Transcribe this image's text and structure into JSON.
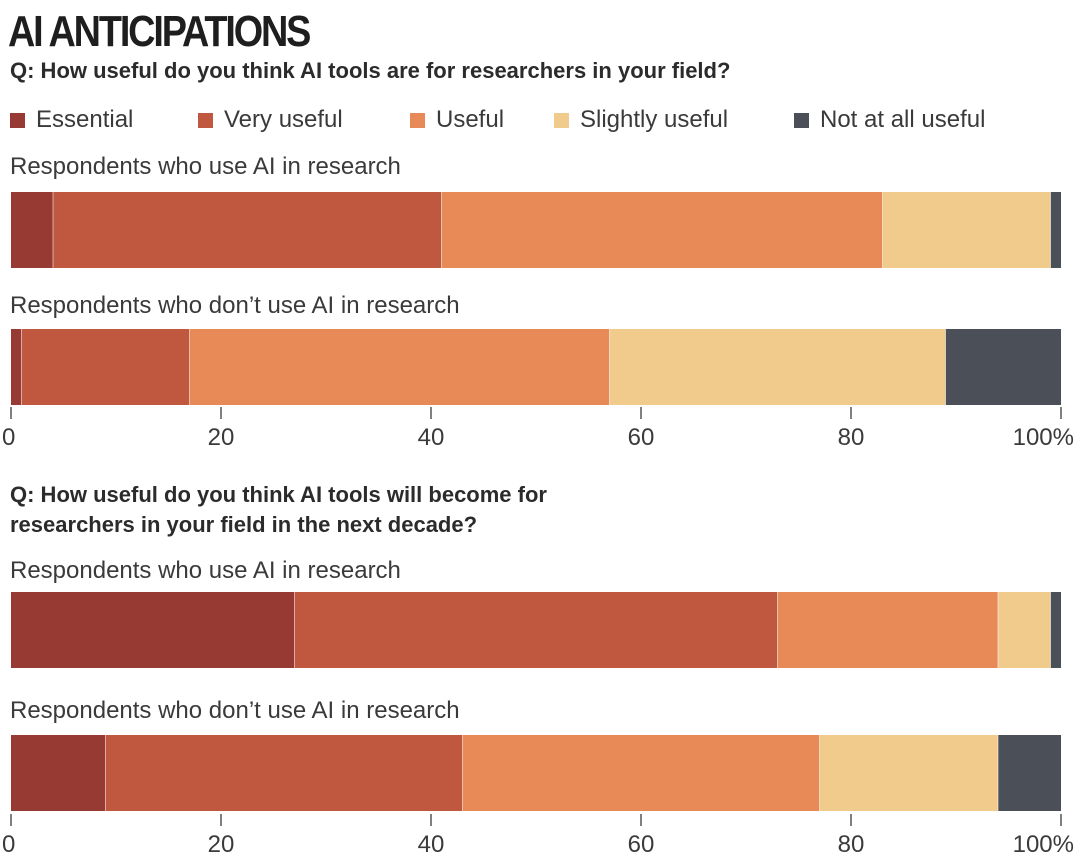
{
  "title": "AI ANTICIPATIONS",
  "colors": {
    "Essential": "#973a33",
    "Very useful": "#c0573f",
    "Useful": "#e88a58",
    "Slightly useful": "#f1cb8c",
    "Not at all useful": "#4a4f58"
  },
  "chart_data": [
    {
      "type": "bar",
      "orientation": "horizontal-stacked",
      "title": "Q: How useful do you think AI tools are for researchers in your field?",
      "categories": [
        "Respondents who use AI in research",
        "Respondents who don’t use AI in research"
      ],
      "series": [
        {
          "name": "Essential",
          "values": [
            4,
            1
          ]
        },
        {
          "name": "Very useful",
          "values": [
            37,
            16
          ]
        },
        {
          "name": "Useful",
          "values": [
            42,
            40
          ]
        },
        {
          "name": "Slightly useful",
          "values": [
            16,
            32
          ]
        },
        {
          "name": "Not at all useful",
          "values": [
            1,
            11
          ]
        }
      ],
      "xlim": [
        0,
        100
      ],
      "xticks": [
        "0",
        "20",
        "40",
        "60",
        "80",
        "100%"
      ],
      "legend": "top"
    },
    {
      "type": "bar",
      "orientation": "horizontal-stacked",
      "title": "Q: How useful do you think AI tools will become for researchers in your field in the next decade?",
      "categories": [
        "Respondents who use AI in research",
        "Respondents who don’t use AI in research"
      ],
      "series": [
        {
          "name": "Essential",
          "values": [
            27,
            9
          ]
        },
        {
          "name": "Very useful",
          "values": [
            46,
            34
          ]
        },
        {
          "name": "Useful",
          "values": [
            21,
            34
          ]
        },
        {
          "name": "Slightly useful",
          "values": [
            5,
            17
          ]
        },
        {
          "name": "Not at all useful",
          "values": [
            1,
            6
          ]
        }
      ],
      "xlim": [
        0,
        100
      ],
      "xticks": [
        "0",
        "20",
        "40",
        "60",
        "80",
        "100%"
      ],
      "legend": "top"
    }
  ]
}
